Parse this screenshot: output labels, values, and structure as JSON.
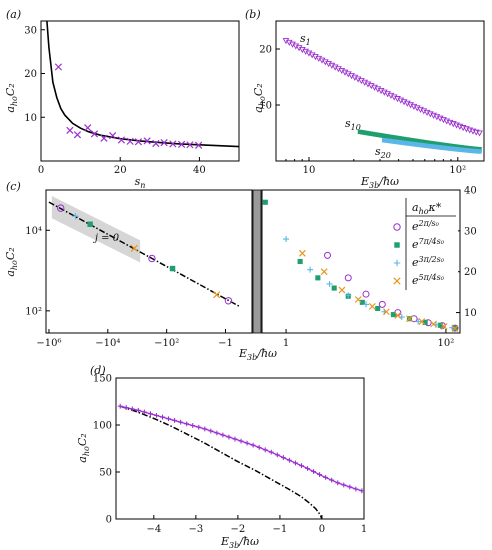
{
  "chart_data": [
    {
      "panel": "(a)",
      "type": "scatter",
      "xlabel": "s_n",
      "ylabel": "a_ho C_2",
      "xlim": [
        0,
        50
      ],
      "ylim": [
        0,
        32
      ],
      "xticks": [
        "0",
        "20",
        "40"
      ],
      "yticks": [
        "10",
        "20",
        "30"
      ],
      "series": [
        {
          "type": "scatter",
          "marker": "x",
          "color": "#9b30d0",
          "x": [
            4.4,
            7.3,
            9.2,
            11.8,
            13.5,
            15.9,
            18.1,
            20.3,
            22.5,
            24.6,
            26.8,
            29.0,
            31.1,
            33.3,
            35.5,
            37.6,
            39.8
          ],
          "y": [
            21.5,
            7.0,
            6.0,
            7.6,
            6.2,
            5.2,
            5.8,
            4.8,
            4.5,
            4.4,
            4.6,
            4.0,
            4.2,
            3.9,
            3.8,
            3.7,
            3.6
          ]
        },
        {
          "type": "line",
          "color": "#000000",
          "x": [
            1.5,
            2,
            3,
            4,
            5,
            6,
            8,
            10,
            12,
            15,
            20,
            25,
            30,
            35,
            40,
            45,
            50
          ],
          "y": [
            32,
            26,
            18,
            14.5,
            12,
            10.5,
            8.6,
            7.5,
            6.7,
            5.9,
            5.1,
            4.6,
            4.2,
            3.9,
            3.7,
            3.5,
            3.3
          ]
        }
      ]
    },
    {
      "panel": "(b)",
      "type": "scatter",
      "xlabel": "E_3b/ħω",
      "ylabel": "a_ho C_2",
      "xscale": "log",
      "xlim": [
        6,
        150
      ],
      "ylim": [
        0,
        25
      ],
      "xticks": [
        "10",
        "10²"
      ],
      "yticks": [
        "10",
        "20"
      ],
      "annotations": [
        "s_1",
        "s_10",
        "s_20"
      ],
      "series": [
        {
          "marker": "triangle-down",
          "color": "#9b30d0",
          "x0": 7,
          "x1": 140,
          "y0": 21.5,
          "y1": 5.0,
          "count": 60
        },
        {
          "marker": "square",
          "color": "#1f9e6e",
          "x0": 22,
          "x1": 140,
          "y0": 5.2,
          "y1": 2.1,
          "count": 55
        },
        {
          "marker": "square",
          "color": "#5bb7e8",
          "x0": 32,
          "x1": 140,
          "y0": 3.7,
          "y1": 1.7,
          "count": 50
        }
      ]
    },
    {
      "panel": "(c)",
      "type": "scatter",
      "xlabel": "E_3b/ħω",
      "ylabel": "a_ho C_2",
      "annotations": [
        "j = 0"
      ],
      "left": {
        "xscale": "symlog-negative",
        "yscale": "log",
        "xticks": [
          "−10⁶",
          "−10⁴",
          "−10²",
          "−1"
        ],
        "yticks": [
          "10²",
          "10⁴"
        ],
        "line_logx": [
          6.0,
          5.0,
          4.0,
          3.0,
          2.0,
          1.0,
          0.0,
          -0.5
        ],
        "line_logy": [
          4.7,
          4.3,
          3.9,
          3.5,
          3.1,
          2.7,
          2.3,
          2.1
        ],
        "points": [
          {
            "marker": "circle",
            "color": "#9b30d0",
            "logx": [
              5.6,
              2.5,
              -0.1
            ],
            "logy": [
              4.55,
              3.3,
              2.25
            ]
          },
          {
            "marker": "square",
            "color": "#1f9e6e",
            "logx": [
              4.6,
              1.8
            ],
            "logy": [
              4.15,
              3.05
            ]
          },
          {
            "marker": "plus",
            "color": "#5bb7e8",
            "logx": [
              5.1
            ],
            "logy": [
              4.35
            ]
          },
          {
            "marker": "x",
            "color": "#e8961e",
            "logx": [
              3.1,
              0.3
            ],
            "logy": [
              3.55,
              2.4
            ]
          }
        ]
      },
      "right": {
        "xscale": "log",
        "xlim": [
          0.5,
          150
        ],
        "ylim": [
          5,
          40
        ],
        "xticks": [
          "1",
          "10²"
        ],
        "yticks": [
          "10",
          "20",
          "30",
          "40"
        ],
        "legend_title": "a_ho κ_*",
        "legend": [
          "e^{2π/s0}",
          "e^{7π/4s0}",
          "e^{3π/2s0}",
          "e^{5π/4s0}"
        ],
        "series": [
          {
            "marker": "circle",
            "color": "#9b30d0",
            "x": [
              3.3,
              6,
              10,
              16,
              25,
              40,
              60,
              90,
              130
            ],
            "y": [
              24,
              18.5,
              14.5,
              12.0,
              10.0,
              8.5,
              7.5,
              6.8,
              6.2
            ]
          },
          {
            "marker": "square",
            "color": "#1f9e6e",
            "x": [
              0.55,
              1.5,
              2.5,
              4,
              6,
              9,
              14,
              22,
              35,
              55,
              85,
              130
            ],
            "y": [
              37,
              22.5,
              18.5,
              16,
              14,
              12.5,
              11,
              9.5,
              8.5,
              7.6,
              6.9,
              6.2
            ]
          },
          {
            "marker": "plus",
            "color": "#5bb7e8",
            "x": [
              1.0,
              2.0,
              3.5,
              6,
              10,
              17,
              28,
              45,
              75,
              120
            ],
            "y": [
              28,
              20.5,
              17,
              14.2,
              12,
              10.2,
              8.9,
              7.8,
              7.0,
              6.3
            ]
          },
          {
            "marker": "x",
            "color": "#e8961e",
            "x": [
              1.6,
              3.0,
              5,
              8,
              12,
              18,
              25,
              35,
              50,
              70,
              95,
              130
            ],
            "y": [
              24.5,
              20,
              15.5,
              13.2,
              11.5,
              10.2,
              9.3,
              8.5,
              7.8,
              7.2,
              6.6,
              6.1
            ]
          }
        ]
      }
    },
    {
      "panel": "(d)",
      "type": "line",
      "xlabel": "E_3b/ħω",
      "ylabel": "a_ho C_2",
      "xlim": [
        -4.9,
        1.0
      ],
      "ylim": [
        0,
        150
      ],
      "xticks": [
        "−4",
        "−3",
        "−2",
        "−1",
        "0",
        "1"
      ],
      "yticks": [
        "0",
        "50",
        "100",
        "150"
      ],
      "series": [
        {
          "type": "line-markers",
          "marker": "plus",
          "color": "#9b30d0",
          "x": [
            -4.8,
            -4.4,
            -4.0,
            -3.6,
            -3.2,
            -2.8,
            -2.4,
            -2.0,
            -1.6,
            -1.2,
            -0.8,
            -0.4,
            0.0,
            0.4,
            0.8,
            0.95
          ],
          "y": [
            120,
            116,
            111,
            106,
            101,
            96,
            90,
            84,
            78,
            71,
            63,
            55,
            46,
            38,
            32,
            30
          ]
        },
        {
          "type": "dash-dot",
          "color": "#000000",
          "x": [
            -4.8,
            -4.4,
            -4.0,
            -3.6,
            -3.2,
            -2.8,
            -2.4,
            -2.0,
            -1.6,
            -1.2,
            -0.8,
            -0.5,
            -0.3,
            -0.15,
            -0.05,
            0.0
          ],
          "y": [
            120,
            114,
            107,
            99,
            90,
            81,
            71,
            61,
            52,
            42,
            32,
            24,
            17,
            11,
            5,
            0
          ]
        }
      ]
    }
  ]
}
